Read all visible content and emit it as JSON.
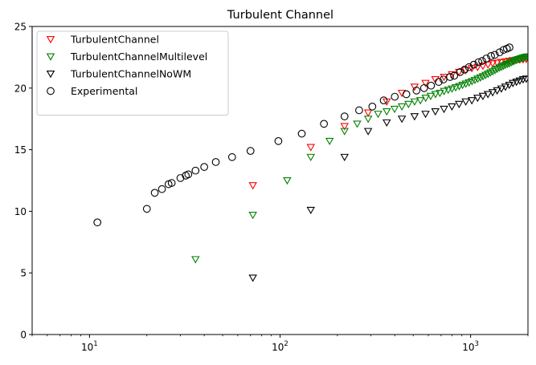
{
  "chart_data": {
    "type": "scatter",
    "title": "Turbulent Channel",
    "xlabel": "",
    "ylabel": "",
    "xscale": "log",
    "xlim": [
      5,
      2000
    ],
    "ylim": [
      0,
      25
    ],
    "grid": false,
    "legend": "top-left",
    "x_ticks": [
      {
        "value": 10,
        "base": "10",
        "exp": "1"
      },
      {
        "value": 100,
        "base": "10",
        "exp": "2"
      },
      {
        "value": 1000,
        "base": "10",
        "exp": "3"
      }
    ],
    "y_ticks": [
      {
        "value": 0,
        "label": "0"
      },
      {
        "value": 5,
        "label": "5"
      },
      {
        "value": 10,
        "label": "10"
      },
      {
        "value": 15,
        "label": "15"
      },
      {
        "value": 20,
        "label": "20"
      },
      {
        "value": 25,
        "label": "25"
      }
    ],
    "series": [
      {
        "name": "TurbulentChannel",
        "marker": "triangle-down",
        "color": "#ff0000",
        "x": [
          72,
          145,
          218,
          290,
          363,
          436,
          508,
          580,
          653,
          725,
          798,
          870,
          943,
          1015,
          1088,
          1160,
          1233,
          1305,
          1378,
          1450,
          1523,
          1596,
          1668,
          1741,
          1813,
          1886,
          1958
        ],
        "y": [
          12.1,
          15.2,
          16.9,
          18.0,
          18.9,
          19.6,
          20.1,
          20.4,
          20.7,
          20.9,
          21.1,
          21.3,
          21.45,
          21.6,
          21.7,
          21.8,
          21.9,
          22.0,
          22.05,
          22.1,
          22.15,
          22.2,
          22.25,
          22.28,
          22.3,
          22.32,
          22.35
        ]
      },
      {
        "name": "TurbulentChannelMultilevel",
        "marker": "triangle-down",
        "color": "#008000",
        "x": [
          36,
          72,
          109,
          145,
          182,
          218,
          254,
          290,
          327,
          363,
          399,
          436,
          472,
          508,
          545,
          581,
          617,
          654,
          690,
          726,
          763,
          799,
          835,
          872,
          908,
          944,
          981,
          1017,
          1053,
          1090,
          1126,
          1162,
          1199,
          1235,
          1271,
          1308,
          1344,
          1380,
          1417,
          1453,
          1489,
          1526,
          1562,
          1598,
          1635,
          1671,
          1707,
          1744,
          1780,
          1816,
          1853,
          1889,
          1925,
          1962,
          1998
        ],
        "y": [
          6.1,
          9.7,
          12.5,
          14.4,
          15.7,
          16.5,
          17.1,
          17.5,
          17.9,
          18.1,
          18.3,
          18.5,
          18.7,
          18.9,
          19.0,
          19.2,
          19.35,
          19.5,
          19.6,
          19.75,
          19.85,
          19.95,
          20.05,
          20.15,
          20.25,
          20.35,
          20.45,
          20.55,
          20.65,
          20.75,
          20.85,
          20.95,
          21.05,
          21.15,
          21.25,
          21.35,
          21.45,
          21.55,
          21.65,
          21.72,
          21.8,
          21.88,
          21.95,
          22.0,
          22.08,
          22.15,
          22.22,
          22.28,
          22.33,
          22.38,
          22.42,
          22.46,
          22.5,
          22.53,
          22.55
        ]
      },
      {
        "name": "TurbulentChannelNoWM",
        "marker": "triangle-down",
        "color": "#000000",
        "x": [
          72,
          145,
          218,
          290,
          363,
          436,
          508,
          580,
          653,
          725,
          798,
          870,
          943,
          1015,
          1088,
          1160,
          1233,
          1305,
          1378,
          1450,
          1523,
          1596,
          1668,
          1741,
          1813,
          1886,
          1958
        ],
        "y": [
          4.6,
          10.1,
          14.4,
          16.5,
          17.2,
          17.5,
          17.7,
          17.9,
          18.1,
          18.3,
          18.5,
          18.7,
          18.9,
          19.0,
          19.2,
          19.35,
          19.5,
          19.65,
          19.8,
          19.95,
          20.1,
          20.25,
          20.4,
          20.5,
          20.6,
          20.7,
          20.75
        ]
      },
      {
        "name": "Experimental",
        "marker": "circle",
        "color": "#000000",
        "x": [
          11,
          20,
          22,
          24,
          26,
          27,
          30,
          32,
          33,
          36,
          40,
          46,
          56,
          70,
          98,
          130,
          170,
          218,
          260,
          305,
          350,
          400,
          460,
          520,
          570,
          620,
          680,
          720,
          780,
          820,
          880,
          930,
          980,
          1040,
          1100,
          1150,
          1210,
          1280,
          1340,
          1420,
          1490,
          1550,
          1600
        ],
        "y": [
          9.1,
          10.2,
          11.5,
          11.8,
          12.2,
          12.3,
          12.7,
          12.9,
          13.0,
          13.3,
          13.6,
          14.0,
          14.4,
          14.9,
          15.7,
          16.3,
          17.1,
          17.7,
          18.2,
          18.5,
          19.0,
          19.3,
          19.5,
          19.8,
          20.0,
          20.2,
          20.5,
          20.7,
          20.9,
          21.0,
          21.3,
          21.5,
          21.7,
          21.9,
          22.1,
          22.2,
          22.4,
          22.6,
          22.7,
          22.9,
          23.1,
          23.2,
          23.3
        ]
      }
    ]
  }
}
